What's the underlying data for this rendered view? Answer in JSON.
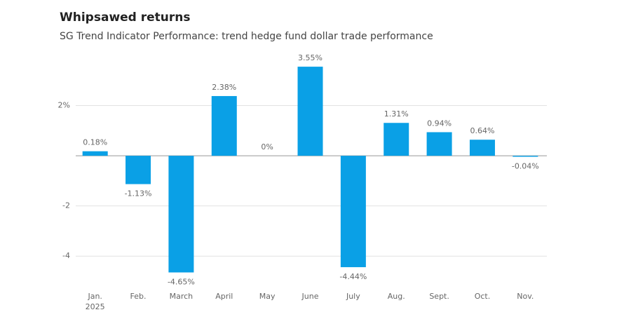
{
  "chart_data": {
    "type": "bar",
    "title": "Whipsawed returns",
    "subtitle": "SG Trend Indicator Performance: trend hedge fund dollar trade performance",
    "categories": [
      "Jan.",
      "Feb.",
      "March",
      "April",
      "May",
      "June",
      "July",
      "Aug.",
      "Sept.",
      "Oct.",
      "Nov."
    ],
    "year_label": "2025",
    "values": [
      0.18,
      -1.13,
      -4.65,
      2.38,
      0,
      3.55,
      -4.44,
      1.31,
      0.94,
      0.64,
      -0.04
    ],
    "value_labels": [
      "0.18%",
      "-1.13%",
      "-4.65%",
      "2.38%",
      "0%",
      "3.55%",
      "-4.44%",
      "1.31%",
      "0.94%",
      "0.64%",
      "-0.04%"
    ],
    "color": "#0aa0e6",
    "ylim": [
      -5,
      4
    ],
    "yticks": [
      -4,
      -2,
      {
        "value": 2,
        "label": "2%"
      }
    ],
    "grid": true
  }
}
